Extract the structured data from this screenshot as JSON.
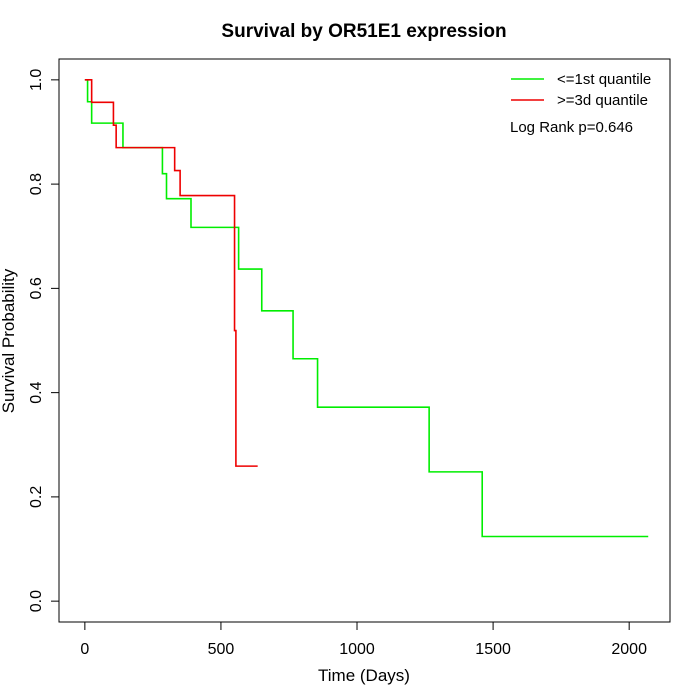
{
  "chart_data": {
    "type": "line",
    "title": "Survival by OR51E1 expression",
    "xlabel": "Time (Days)",
    "ylabel": "Survival Probability",
    "xlim": [
      -95,
      2150
    ],
    "ylim": [
      -0.04,
      1.04
    ],
    "xticks": [
      0,
      500,
      1000,
      1500,
      2000
    ],
    "xtick_labels": [
      "0",
      "500",
      "1000",
      "1500",
      "2000"
    ],
    "yticks": [
      0.0,
      0.2,
      0.4,
      0.6,
      0.8,
      1.0
    ],
    "ytick_labels": [
      "0.0",
      "0.2",
      "0.4",
      "0.6",
      "0.8",
      "1.0"
    ],
    "grid": false,
    "legend_position": "top-right",
    "annotation": "Log Rank p=0.646",
    "series": [
      {
        "name": "<=1st quantile",
        "color": "#00ee00",
        "steps": [
          [
            0,
            1.0
          ],
          [
            10,
            0.958
          ],
          [
            25,
            0.917
          ],
          [
            140,
            0.87
          ],
          [
            285,
            0.82
          ],
          [
            300,
            0.772
          ],
          [
            390,
            0.717
          ],
          [
            565,
            0.637
          ],
          [
            650,
            0.557
          ],
          [
            765,
            0.465
          ],
          [
            855,
            0.372
          ],
          [
            1265,
            0.248
          ],
          [
            1460,
            0.124
          ],
          [
            2070,
            0.124
          ]
        ]
      },
      {
        "name": ">=3d quantile",
        "color": "#ee0000",
        "steps": [
          [
            0,
            1.0
          ],
          [
            25,
            0.957
          ],
          [
            105,
            0.913
          ],
          [
            115,
            0.87
          ],
          [
            330,
            0.826
          ],
          [
            350,
            0.778
          ],
          [
            550,
            0.519
          ],
          [
            555,
            0.259
          ],
          [
            635,
            0.259
          ]
        ]
      }
    ]
  }
}
